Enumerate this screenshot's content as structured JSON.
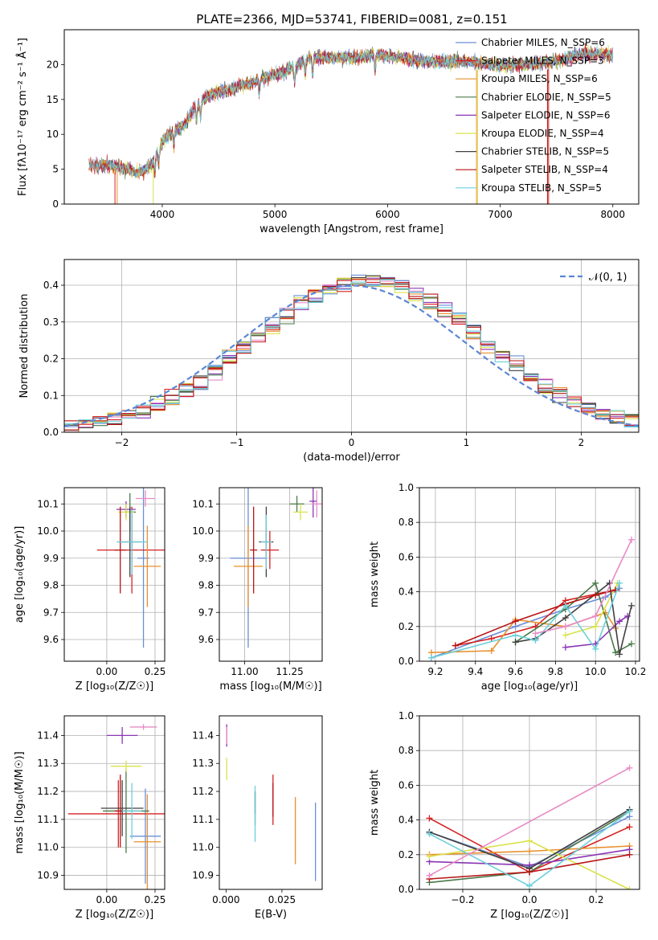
{
  "figure": {
    "title": "PLATE=2366, MJD=53741, FIBERID=0081, z=0.151"
  },
  "chart_data": [
    {
      "id": "spectrum",
      "type": "line",
      "xlabel": "wavelength [Angstrom, rest frame]",
      "ylabel": "Flux [fλ10⁻¹⁷ erg cm⁻² s⁻¹ Å⁻¹]",
      "xlim": [
        3130,
        8230
      ],
      "ylim": [
        0,
        25
      ],
      "xticks": [
        4000,
        5000,
        6000,
        7000,
        8000
      ],
      "yticks": [
        0,
        5,
        10,
        15,
        20
      ],
      "grid": false,
      "legend_position": "right",
      "series": [
        {
          "name": "Chabrier MILES, N_SSP=6",
          "color": "#6a8fd6"
        },
        {
          "name": "Salpeter MILES, N_SSP=3",
          "color": "#d62020"
        },
        {
          "name": "Kroupa MILES, N_SSP=6",
          "color": "#e8902e"
        },
        {
          "name": "Chabrier ELODIE, N_SSP=5",
          "color": "#4a7a4a"
        },
        {
          "name": "Salpeter ELODIE, N_SSP=6",
          "color": "#8a35b5"
        },
        {
          "name": "Kroupa ELODIE, N_SSP=4",
          "color": "#d9e24a"
        },
        {
          "name": "Chabrier STELIB, N_SSP=5",
          "color": "#404040"
        },
        {
          "name": "Salpeter STELIB, N_SSP=4",
          "color": "#b81414"
        },
        {
          "name": "Kroupa STELIB, N_SSP=5",
          "color": "#6ccfdc"
        }
      ],
      "continuum": {
        "x": [
          3350,
          3500,
          3650,
          3800,
          3900,
          4000,
          4100,
          4200,
          4300,
          4400,
          4500,
          4700,
          4900,
          5100,
          5300,
          5500,
          5700,
          5900,
          6100,
          6300,
          6500,
          6700,
          6900,
          7100,
          7300,
          7500,
          7700,
          7900,
          8000
        ],
        "y": [
          5.5,
          5.6,
          5.2,
          4.5,
          5.5,
          9.0,
          10.5,
          11.5,
          14.0,
          15.5,
          16.0,
          17.0,
          18.0,
          19.0,
          21.0,
          21.0,
          21.0,
          21.5,
          21.0,
          20.5,
          20.5,
          20.5,
          20.0,
          20.0,
          20.0,
          20.5,
          21.5,
          21.5,
          21.5
        ]
      }
    },
    {
      "id": "residuals",
      "type": "bar",
      "xlabel": "(data-model)/error",
      "ylabel": "Normed distribution",
      "xlim": [
        -2.5,
        2.5
      ],
      "ylim": [
        0,
        0.47
      ],
      "xticks": [
        -2,
        -1,
        0,
        1,
        2
      ],
      "yticks": [
        0.0,
        0.1,
        0.2,
        0.3,
        0.4
      ],
      "grid": true,
      "legend_position": "top-right",
      "legend": "𝒩(0, 1)",
      "bin_width": 0.125
    },
    {
      "id": "age_vs_Z",
      "type": "scatter",
      "xlabel": "Z [log₁₀(Z/Z☉)]",
      "ylabel": "age  [log₁₀(age/yr)]",
      "xlim": [
        -0.22,
        0.3
      ],
      "ylim": [
        9.52,
        10.16
      ],
      "xticks": [
        0.0,
        0.25
      ],
      "yticks": [
        9.6,
        9.7,
        9.8,
        9.9,
        10.0,
        10.1
      ],
      "grid": true,
      "points": [
        {
          "x": 0.19,
          "y": 9.9,
          "xerr": 0.03,
          "yerr": 0.33,
          "c": 0
        },
        {
          "x": 0.13,
          "y": 9.93,
          "xerr": 0.18,
          "yerr": 0.16,
          "c": 1
        },
        {
          "x": 0.21,
          "y": 9.87,
          "xerr": 0.07,
          "yerr": 0.15,
          "c": 2
        },
        {
          "x": 0.12,
          "y": 10.07,
          "xerr": 0.03,
          "yerr": 0.07,
          "c": 3
        },
        {
          "x": 0.1,
          "y": 10.08,
          "xerr": 0.05,
          "yerr": 0.03,
          "c": 4
        },
        {
          "x": 0.1,
          "y": 10.07,
          "xerr": 0.04,
          "yerr": 0.03,
          "c": 5
        },
        {
          "x": 0.12,
          "y": 9.96,
          "xerr": 0.06,
          "yerr": 0.13,
          "c": 6
        },
        {
          "x": 0.07,
          "y": 9.93,
          "xerr": 0.03,
          "yerr": 0.16,
          "c": 7
        },
        {
          "x": 0.13,
          "y": 9.96,
          "xerr": 0.08,
          "yerr": 0.12,
          "c": 8
        },
        {
          "x": 0.2,
          "y": 10.12,
          "xerr": 0.05,
          "yerr": 0.03,
          "c": 9
        }
      ]
    },
    {
      "id": "age_vs_mass",
      "type": "scatter",
      "xlabel": "mass [log₁₀(M/M☉)]",
      "ylabel": "",
      "xlim": [
        10.86,
        11.43
      ],
      "ylim": [
        9.52,
        10.16
      ],
      "xticks": [
        11.0,
        11.25
      ],
      "yticks": [
        9.6,
        9.7,
        9.8,
        9.9,
        10.0,
        10.1
      ],
      "grid": true,
      "points": [
        {
          "x": 11.02,
          "y": 9.9,
          "xerr": 0.1,
          "yerr": 0.33,
          "c": 0
        },
        {
          "x": 11.14,
          "y": 9.93,
          "xerr": 0.05,
          "yerr": 0.07,
          "c": 1
        },
        {
          "x": 11.02,
          "y": 9.87,
          "xerr": 0.08,
          "yerr": 0.15,
          "c": 2
        },
        {
          "x": 11.29,
          "y": 10.1,
          "xerr": 0.04,
          "yerr": 0.03,
          "c": 3
        },
        {
          "x": 11.38,
          "y": 10.11,
          "xerr": 0.02,
          "yerr": 0.06,
          "c": 4
        },
        {
          "x": 11.31,
          "y": 10.07,
          "xerr": 0.04,
          "yerr": 0.03,
          "c": 5
        },
        {
          "x": 11.12,
          "y": 9.96,
          "xerr": 0.04,
          "yerr": 0.13,
          "c": 6
        },
        {
          "x": 11.05,
          "y": 9.93,
          "xerr": 0.02,
          "yerr": 0.16,
          "c": 7
        },
        {
          "x": 11.12,
          "y": 9.96,
          "xerr": 0.03,
          "yerr": 0.1,
          "c": 8
        },
        {
          "x": 11.4,
          "y": 10.1,
          "xerr": 0.03,
          "yerr": 0.05,
          "c": 9
        }
      ]
    },
    {
      "id": "weight_vs_age",
      "type": "line",
      "xlabel": "age  [log₁₀(age/yr)]",
      "ylabel": "mass weight",
      "xlim": [
        9.12,
        10.22
      ],
      "ylim": [
        0,
        1
      ],
      "xticks": [
        9.2,
        9.4,
        9.6,
        9.8,
        10.0,
        10.2
      ],
      "yticks": [
        0.0,
        0.2,
        0.4,
        0.6,
        0.8,
        1.0
      ],
      "grid": true,
      "series": [
        {
          "c": 0,
          "x": [
            9.18,
            9.6,
            9.85,
            10.05,
            10.12
          ],
          "y": [
            0.02,
            0.2,
            0.3,
            0.37,
            0.42
          ]
        },
        {
          "c": 1,
          "x": [
            9.3,
            9.48,
            9.7,
            9.85,
            10.1
          ],
          "y": [
            0.09,
            0.13,
            0.2,
            0.35,
            0.41
          ]
        },
        {
          "c": 2,
          "x": [
            9.18,
            9.48,
            9.6,
            9.85,
            10.05,
            10.1
          ],
          "y": [
            0.05,
            0.06,
            0.24,
            0.2,
            0.28,
            0.19
          ]
        },
        {
          "c": 3,
          "x": [
            9.6,
            9.85,
            10.0,
            10.1,
            10.18
          ],
          "y": [
            0.11,
            0.3,
            0.45,
            0.05,
            0.1
          ]
        },
        {
          "c": 4,
          "x": [
            9.85,
            10.0,
            10.12,
            10.16
          ],
          "y": [
            0.08,
            0.1,
            0.23,
            0.26
          ]
        },
        {
          "c": 5,
          "x": [
            9.85,
            10.0,
            10.11
          ],
          "y": [
            0.15,
            0.2,
            0.45
          ]
        },
        {
          "c": 6,
          "x": [
            9.6,
            9.7,
            9.85,
            10.07,
            10.12,
            10.18
          ],
          "y": [
            0.11,
            0.13,
            0.25,
            0.45,
            0.04,
            0.32
          ]
        },
        {
          "c": 7,
          "x": [
            9.3,
            9.6,
            9.85,
            10.0,
            10.1
          ],
          "y": [
            0.09,
            0.23,
            0.33,
            0.38,
            0.41
          ]
        },
        {
          "c": 8,
          "x": [
            9.18,
            9.6,
            9.7,
            9.85,
            10.0,
            10.12
          ],
          "y": [
            0.02,
            0.15,
            0.12,
            0.32,
            0.07,
            0.45
          ]
        },
        {
          "c": 9,
          "x": [
            9.7,
            9.85,
            10.0,
            10.18
          ],
          "y": [
            0.16,
            0.2,
            0.26,
            0.7
          ]
        }
      ]
    },
    {
      "id": "mass_vs_Z",
      "type": "scatter",
      "xlabel": "Z [log₁₀(Z/Z☉)]",
      "ylabel": "mass [log₁₀(M/M☉)]",
      "xlim": [
        -0.22,
        0.3
      ],
      "ylim": [
        10.85,
        11.47
      ],
      "xticks": [
        0.0,
        0.25
      ],
      "yticks": [
        10.9,
        11.0,
        11.1,
        11.2,
        11.3,
        11.4
      ],
      "grid": true,
      "points": [
        {
          "x": 0.2,
          "y": 11.04,
          "xerr": 0.08,
          "yerr": 0.17,
          "c": 0
        },
        {
          "x": 0.06,
          "y": 11.12,
          "xerr": 0.26,
          "yerr": 0.12,
          "c": 1
        },
        {
          "x": 0.21,
          "y": 11.02,
          "xerr": 0.07,
          "yerr": 0.17,
          "c": 2
        },
        {
          "x": 0.1,
          "y": 11.13,
          "xerr": 0.12,
          "yerr": 0.15,
          "c": 3
        },
        {
          "x": 0.08,
          "y": 11.4,
          "xerr": 0.08,
          "yerr": 0.03,
          "c": 4
        },
        {
          "x": 0.1,
          "y": 11.29,
          "xerr": 0.08,
          "yerr": 0.02,
          "c": 5
        },
        {
          "x": 0.08,
          "y": 11.14,
          "xerr": 0.11,
          "yerr": 0.1,
          "c": 6
        },
        {
          "x": 0.07,
          "y": 11.13,
          "xerr": 0.03,
          "yerr": 0.13,
          "c": 7
        },
        {
          "x": 0.13,
          "y": 11.13,
          "xerr": 0.05,
          "yerr": 0.1,
          "c": 8
        },
        {
          "x": 0.19,
          "y": 11.43,
          "xerr": 0.07,
          "yerr": 0.01,
          "c": 9
        }
      ]
    },
    {
      "id": "mass_vs_EBV",
      "type": "scatter",
      "xlabel": "E(B-V)",
      "ylabel": "",
      "xlim": [
        -0.003,
        0.043
      ],
      "ylim": [
        10.85,
        11.47
      ],
      "xticks": [
        0.0,
        0.025
      ],
      "yticks": [
        10.9,
        11.0,
        11.1,
        11.2,
        11.3,
        11.4
      ],
      "grid": false,
      "points": [
        {
          "x": 0.04,
          "y": 11.02,
          "yerr": 0.14,
          "c": 0
        },
        {
          "x": 0.021,
          "y": 11.17,
          "yerr": 0.09,
          "c": 1
        },
        {
          "x": 0.031,
          "y": 11.06,
          "yerr": 0.12,
          "c": 2
        },
        {
          "x": 0.013,
          "y": 11.14,
          "yerr": 0.06,
          "c": 3
        },
        {
          "x": 0.0003,
          "y": 11.4,
          "yerr": 0.04,
          "c": 4
        },
        {
          "x": 0.0003,
          "y": 11.28,
          "yerr": 0.04,
          "c": 5
        },
        {
          "x": 0.013,
          "y": 11.16,
          "yerr": 0.04,
          "c": 6
        },
        {
          "x": 0.021,
          "y": 11.17,
          "yerr": 0.06,
          "c": 7
        },
        {
          "x": 0.013,
          "y": 11.12,
          "yerr": 0.1,
          "c": 8
        },
        {
          "x": 0.0003,
          "y": 11.4,
          "yerr": 0.03,
          "c": 9
        }
      ]
    },
    {
      "id": "weight_vs_Z",
      "type": "line",
      "xlabel": "Z [log₁₀(Z/Z☉)]",
      "ylabel": "mass weight",
      "xlim": [
        -0.33,
        0.33
      ],
      "ylim": [
        0,
        1
      ],
      "xticks": [
        -0.2,
        0.0,
        0.2
      ],
      "yticks": [
        0.0,
        0.2,
        0.4,
        0.6,
        0.8,
        1.0
      ],
      "grid": true,
      "series": [
        {
          "c": 0,
          "x": [
            -0.3,
            0.0,
            0.3
          ],
          "y": [
            0.33,
            0.13,
            0.42
          ]
        },
        {
          "c": 1,
          "x": [
            -0.3,
            0.0,
            0.3
          ],
          "y": [
            0.41,
            0.1,
            0.36
          ]
        },
        {
          "c": 2,
          "x": [
            -0.3,
            0.0,
            0.3
          ],
          "y": [
            0.2,
            0.22,
            0.25
          ]
        },
        {
          "c": 3,
          "x": [
            -0.3,
            0.0,
            0.3
          ],
          "y": [
            0.04,
            0.1,
            0.45
          ]
        },
        {
          "c": 4,
          "x": [
            -0.3,
            0.0,
            0.3
          ],
          "y": [
            0.16,
            0.14,
            0.23
          ]
        },
        {
          "c": 5,
          "x": [
            -0.3,
            0.0,
            0.3
          ],
          "y": [
            0.19,
            0.28,
            0.0
          ]
        },
        {
          "c": 6,
          "x": [
            -0.3,
            0.0,
            0.3
          ],
          "y": [
            0.33,
            0.12,
            0.46
          ]
        },
        {
          "c": 7,
          "x": [
            -0.3,
            0.0,
            0.3
          ],
          "y": [
            0.06,
            0.1,
            0.2
          ]
        },
        {
          "c": 8,
          "x": [
            -0.3,
            0.0,
            0.3
          ],
          "y": [
            0.32,
            0.02,
            0.45
          ]
        },
        {
          "c": 9,
          "x": [
            -0.3,
            0.3
          ],
          "y": [
            0.08,
            0.7
          ]
        }
      ]
    }
  ],
  "palette": [
    "#6a8fd6",
    "#d62020",
    "#e8902e",
    "#4a7a4a",
    "#8a35b5",
    "#d9e24a",
    "#404040",
    "#b81414",
    "#6ccfdc",
    "#e88ac5"
  ],
  "gaussian_color": "#5b86d6"
}
